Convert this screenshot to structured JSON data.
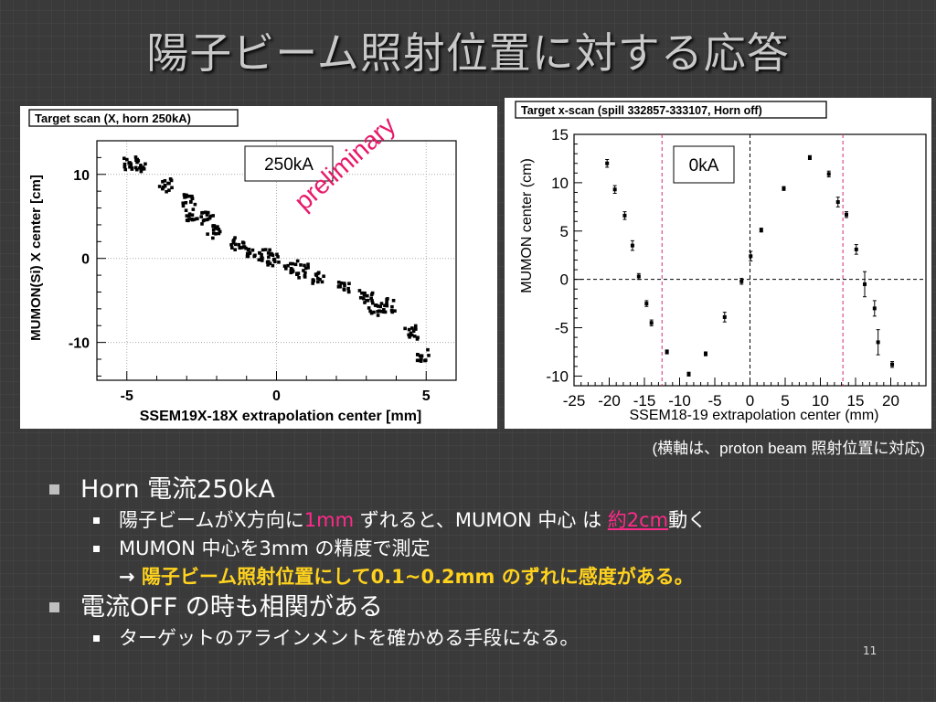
{
  "title": "陽子ビーム照射位置に対する応答",
  "colors": {
    "accent_red": "#ff2a8a",
    "accent_yellow": "#ffd21e",
    "vline_red": "#d42a7a"
  },
  "left_panel": {
    "stat_title": "Target scan (X, horn 250kA)",
    "label_box": "250kA",
    "stamp": "preliminary",
    "xlabel": "SSEM19X-18X extrapolation center [mm]",
    "ylabel": "MUMON(Si) X center [cm]"
  },
  "right_panel": {
    "stat_title": "Target x-scan (spill 332857-333107, Horn off)",
    "label_box": "0kA",
    "xlabel": "SSEM18-19 extrapolation center (mm)",
    "ylabel": "MUMON center (cm)"
  },
  "caption": "(横軸は、proton beam 照射位置に対応)",
  "bullets": {
    "b1": "Horn 電流250kA",
    "b1_1_pre": "陽子ビームがX方向に",
    "b1_1_red": "1mm",
    "b1_1_mid": " ずれると、MUMON 中心 は ",
    "b1_1_red2": "約2cm",
    "b1_1_post": "動く",
    "b1_2": "MUMON 中心を3mm の精度で測定",
    "b1_3_arrow": "→ ",
    "b1_3": "陽子ビーム照射位置にして0.1~0.2mm のずれに感度がある。",
    "b2": "電流OFF の時も相関がある",
    "b2_1": "ターゲットのアラインメントを確かめる手段になる。"
  },
  "page_number": "11",
  "chart_data": [
    {
      "type": "scatter",
      "title": "Target scan (X, horn 250kA)",
      "xlabel": "SSEM19X-18X extrapolation center [mm]",
      "ylabel": "MUMON(Si) X center [cm]",
      "xlim": [
        -6.0,
        6.0
      ],
      "ylim": [
        -14.5,
        14.0
      ],
      "xticks": [
        -5,
        0,
        5
      ],
      "yticks": [
        -10,
        0,
        10
      ],
      "grid": true,
      "clusters": [
        {
          "x": -4.9,
          "y": 11.3
        },
        {
          "x": -4.5,
          "y": 11.0
        },
        {
          "x": -3.7,
          "y": 8.7
        },
        {
          "x": -2.9,
          "y": 6.8
        },
        {
          "x": -2.8,
          "y": 5.3
        },
        {
          "x": -2.3,
          "y": 4.8
        },
        {
          "x": -2.1,
          "y": 3.1
        },
        {
          "x": -1.3,
          "y": 1.8
        },
        {
          "x": -0.9,
          "y": 1.0
        },
        {
          "x": -0.4,
          "y": 0.3
        },
        {
          "x": -0.1,
          "y": -0.2
        },
        {
          "x": 0.5,
          "y": -0.9
        },
        {
          "x": 0.9,
          "y": -1.5
        },
        {
          "x": 1.4,
          "y": -2.4
        },
        {
          "x": 2.3,
          "y": -3.3
        },
        {
          "x": 3.0,
          "y": -4.6
        },
        {
          "x": 3.8,
          "y": -5.6
        },
        {
          "x": 3.3,
          "y": -6.0
        },
        {
          "x": 4.5,
          "y": -8.8
        },
        {
          "x": 4.9,
          "y": -11.6
        }
      ]
    },
    {
      "type": "scatter",
      "title": "Target x-scan (spill 332857-333107, Horn off)",
      "xlabel": "SSEM18-19 extrapolation center (mm)",
      "ylabel": "MUMON center (cm)",
      "xlim": [
        -25,
        25
      ],
      "ylim": [
        -11,
        15
      ],
      "xticks": [
        -25,
        -20,
        -15,
        -10,
        -5,
        0,
        5,
        10,
        15,
        20
      ],
      "yticks": [
        -10,
        -5,
        0,
        5,
        10,
        15
      ],
      "grid": false,
      "series": [
        {
          "x": -20.3,
          "y": 12.0,
          "err": 0.4
        },
        {
          "x": -19.2,
          "y": 9.3,
          "err": 0.4
        },
        {
          "x": -17.8,
          "y": 6.6,
          "err": 0.4
        },
        {
          "x": -16.7,
          "y": 3.5,
          "err": 0.5
        },
        {
          "x": -15.8,
          "y": 0.3,
          "err": 0.3
        },
        {
          "x": -14.7,
          "y": -2.5,
          "err": 0.3
        },
        {
          "x": -14.0,
          "y": -4.5,
          "err": 0.3
        },
        {
          "x": -11.8,
          "y": -7.5,
          "err": 0.2
        },
        {
          "x": -8.7,
          "y": -9.8,
          "err": 0.2
        },
        {
          "x": -6.3,
          "y": -7.7,
          "err": 0.2
        },
        {
          "x": -3.6,
          "y": -3.9,
          "err": 0.5
        },
        {
          "x": -1.2,
          "y": -0.2,
          "err": 0.3
        },
        {
          "x": 0.1,
          "y": 2.4,
          "err": 0.5
        },
        {
          "x": 1.6,
          "y": 5.1,
          "err": 0.2
        },
        {
          "x": 4.8,
          "y": 9.4,
          "err": 0.2
        },
        {
          "x": 8.5,
          "y": 12.6,
          "err": 0.2
        },
        {
          "x": 11.2,
          "y": 10.9,
          "err": 0.3
        },
        {
          "x": 12.5,
          "y": 8.0,
          "err": 0.5
        },
        {
          "x": 13.7,
          "y": 6.7,
          "err": 0.3
        },
        {
          "x": 15.1,
          "y": 3.1,
          "err": 0.5
        },
        {
          "x": 16.3,
          "y": -0.5,
          "err": 1.3
        },
        {
          "x": 17.7,
          "y": -3.0,
          "err": 0.8
        },
        {
          "x": 18.2,
          "y": -6.5,
          "err": 1.3
        },
        {
          "x": 20.2,
          "y": -8.8,
          "err": 0.3
        }
      ],
      "hlines": [
        0
      ],
      "vlines": [
        {
          "x": -12.5,
          "style": "dashed",
          "color": "magenta"
        },
        {
          "x": 0,
          "style": "dashed",
          "color": "black"
        },
        {
          "x": 13.2,
          "style": "dashed",
          "color": "magenta"
        }
      ]
    }
  ]
}
